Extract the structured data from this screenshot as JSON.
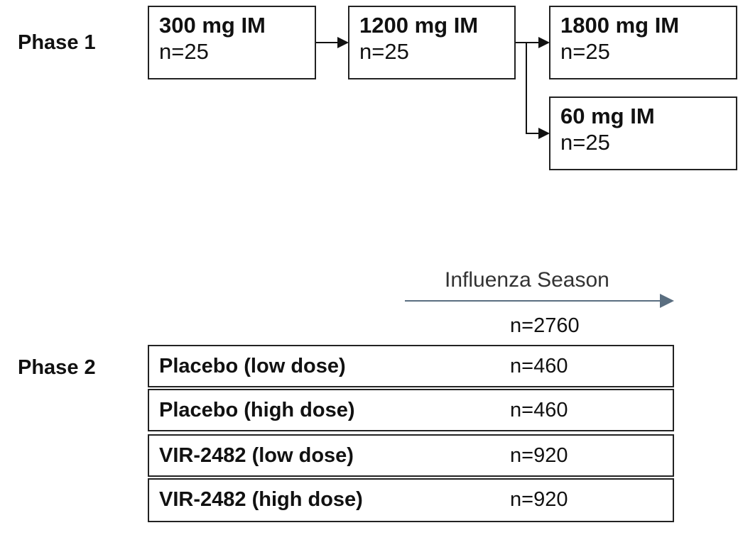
{
  "phase1": {
    "label": "Phase 1",
    "boxes": [
      {
        "dose": "300 mg IM",
        "n": "n=25"
      },
      {
        "dose": "1200 mg IM",
        "n": "n=25"
      },
      {
        "dose": "1800 mg IM",
        "n": "n=25"
      },
      {
        "dose": "60 mg IM",
        "n": "n=25"
      }
    ]
  },
  "phase2": {
    "label": "Phase 2",
    "season_label": "Influenza Season",
    "total": "n=2760",
    "arms": [
      {
        "name": "Placebo (low dose)",
        "n": "n=460"
      },
      {
        "name": "Placebo (high dose)",
        "n": "n=460"
      },
      {
        "name": "VIR-2482 (low dose)",
        "n": "n=920"
      },
      {
        "name": "VIR-2482 (high dose)",
        "n": "n=920"
      }
    ]
  },
  "colors": {
    "season_arrow": "#5a6e80",
    "border": "#222222"
  }
}
